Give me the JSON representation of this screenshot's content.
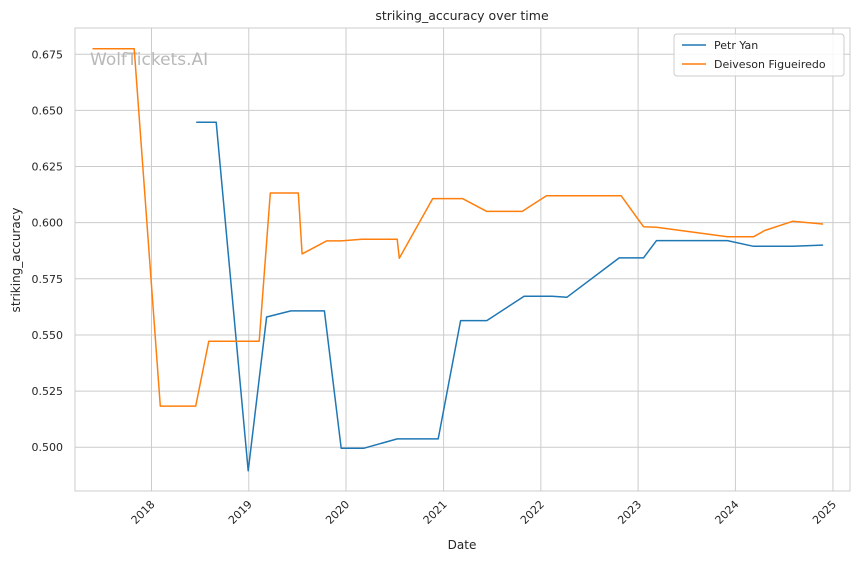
{
  "chart_data": {
    "type": "line",
    "title": "striking_accuracy over time",
    "xlabel": "Date",
    "ylabel": "striking_accuracy",
    "watermark": "WolfTickets.AI",
    "x_ticks": [
      "2018",
      "2019",
      "2020",
      "2021",
      "2022",
      "2023",
      "2024",
      "2025"
    ],
    "y_ticks": [
      "0.500",
      "0.525",
      "0.550",
      "0.575",
      "0.600",
      "0.625",
      "0.650",
      "0.675"
    ],
    "xlim": [
      "2017-03-20",
      "2025-03-06"
    ],
    "ylim": [
      0.4805,
      0.6867
    ],
    "grid": true,
    "legend_position": "top-right",
    "series": [
      {
        "name": "Petr Yan",
        "color": "#1f77b4",
        "points": [
          [
            "2018-06-20",
            0.6447
          ],
          [
            "2018-09-01",
            0.6447
          ],
          [
            "2018-12-30",
            0.4895
          ],
          [
            "2019-03-09",
            0.558
          ],
          [
            "2019-06-08",
            0.5607
          ],
          [
            "2019-10-12",
            0.5607
          ],
          [
            "2019-12-14",
            0.4995
          ],
          [
            "2020-03-07",
            0.4995
          ],
          [
            "2020-07-11",
            0.5037
          ],
          [
            "2020-12-12",
            0.5037
          ],
          [
            "2021-03-06",
            0.5564
          ],
          [
            "2021-06-12",
            0.5564
          ],
          [
            "2021-10-30",
            0.5672
          ],
          [
            "2022-02-12",
            0.5672
          ],
          [
            "2022-04-09",
            0.5668
          ],
          [
            "2022-10-22",
            0.5843
          ],
          [
            "2023-01-21",
            0.5843
          ],
          [
            "2023-03-11",
            0.592
          ],
          [
            "2023-12-02",
            0.592
          ],
          [
            "2024-03-09",
            0.5895
          ],
          [
            "2024-08-03",
            0.5895
          ],
          [
            "2024-11-23",
            0.59
          ]
        ]
      },
      {
        "name": "Deiveson Figueiredo",
        "color": "#ff7f0e",
        "points": [
          [
            "2017-05-27",
            0.6775
          ],
          [
            "2017-10-28",
            0.6775
          ],
          [
            "2018-02-03",
            0.5183
          ],
          [
            "2018-06-16",
            0.5183
          ],
          [
            "2018-08-04",
            0.5472
          ],
          [
            "2019-02-09",
            0.5472
          ],
          [
            "2019-03-23",
            0.6132
          ],
          [
            "2019-07-06",
            0.6132
          ],
          [
            "2019-07-20",
            0.5861
          ],
          [
            "2019-10-20",
            0.5919
          ],
          [
            "2019-12-14",
            0.5919
          ],
          [
            "2020-02-29",
            0.5926
          ],
          [
            "2020-07-11",
            0.5926
          ],
          [
            "2020-07-19",
            0.5842
          ],
          [
            "2020-11-21",
            0.6107
          ],
          [
            "2021-03-13",
            0.6107
          ],
          [
            "2021-06-12",
            0.605
          ],
          [
            "2021-10-23",
            0.605
          ],
          [
            "2022-01-22",
            0.612
          ],
          [
            "2022-10-29",
            0.612
          ],
          [
            "2023-01-21",
            0.5982
          ],
          [
            "2023-03-11",
            0.598
          ],
          [
            "2023-12-02",
            0.5937
          ],
          [
            "2024-03-09",
            0.5937
          ],
          [
            "2024-04-20",
            0.5965
          ],
          [
            "2024-08-03",
            0.6006
          ],
          [
            "2024-11-23",
            0.5994
          ]
        ]
      }
    ]
  }
}
